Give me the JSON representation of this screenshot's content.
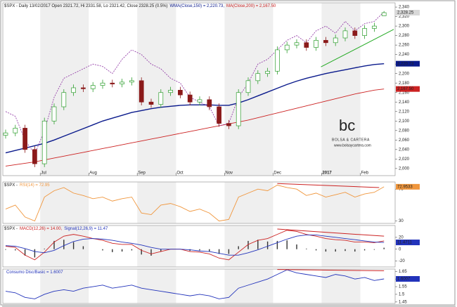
{
  "chart_data": [
    {
      "type": "candlestick",
      "title": "$SPX - Daily 13/02/2017 Open 2321.72, Hi 2331.58, Lo 2321.42, Close 2328.25 (0.5%)",
      "categories": [
        null,
        null,
        null,
        null,
        "Jul",
        null,
        null,
        null,
        null,
        "Aug",
        null,
        null,
        null,
        null,
        "Sep",
        null,
        null,
        null,
        "Oct",
        null,
        null,
        null,
        null,
        "Nov",
        null,
        null,
        null,
        null,
        "Dec",
        null,
        null,
        null,
        null,
        "2017",
        null,
        null,
        null,
        "Feb",
        null,
        null
      ],
      "open": [
        2070,
        2075,
        2085,
        2040,
        2010,
        2100,
        2130,
        2160,
        2170,
        2168,
        2175,
        2180,
        2178,
        2182,
        2185,
        2140,
        2135,
        2160,
        2165,
        2155,
        2140,
        2145,
        2130,
        2095,
        2090,
        2160,
        2185,
        2200,
        2205,
        2250,
        2260,
        2265,
        2255,
        2270,
        2265,
        2275,
        2290,
        2280,
        2295,
        2321.72
      ],
      "high": [
        2082,
        2092,
        2092,
        2047,
        2107,
        2137,
        2167,
        2177,
        2177,
        2182,
        2187,
        2187,
        2189,
        2192,
        2192,
        2147,
        2167,
        2172,
        2172,
        2162,
        2152,
        2152,
        2137,
        2102,
        2167,
        2192,
        2207,
        2212,
        2257,
        2267,
        2272,
        2272,
        2277,
        2277,
        2282,
        2297,
        2297,
        2302,
        2307,
        2331.58
      ],
      "low": [
        2063,
        2068,
        2033,
        2003,
        2003,
        2093,
        2123,
        2153,
        2161,
        2161,
        2168,
        2171,
        2171,
        2175,
        2133,
        2128,
        2128,
        2153,
        2148,
        2133,
        2133,
        2123,
        2088,
        2083,
        2083,
        2153,
        2178,
        2193,
        2198,
        2243,
        2253,
        2248,
        2248,
        2258,
        2258,
        2268,
        2273,
        2273,
        2288,
        2321.42
      ],
      "close": [
        2075,
        2085,
        2040,
        2010,
        2100,
        2130,
        2160,
        2170,
        2168,
        2175,
        2180,
        2178,
        2182,
        2185,
        2140,
        2135,
        2160,
        2165,
        2155,
        2140,
        2145,
        2130,
        2095,
        2090,
        2160,
        2185,
        2200,
        2205,
        2250,
        2260,
        2265,
        2255,
        2270,
        2265,
        2275,
        2290,
        2280,
        2295,
        2300,
        2328.25
      ],
      "last_label": "2,328.25",
      "up_color": "#2e9e2e",
      "down_color": "#8b1a1a",
      "series": [
        {
          "name": "WMA(Close,150) = 2,220.73,",
          "color": "#0a1a8c",
          "last_label": "2,220.73",
          "values": [
            2033,
            2038,
            2043,
            2048,
            2053,
            2060,
            2068,
            2076,
            2084,
            2092,
            2100,
            2106,
            2112,
            2118,
            2122,
            2126,
            2129,
            2131,
            2133,
            2134,
            2134,
            2134,
            2133,
            2133,
            2138,
            2145,
            2153,
            2161,
            2169,
            2177,
            2184,
            2190,
            2195,
            2200,
            2204,
            2208,
            2212,
            2216,
            2219,
            2220.73
          ]
        },
        {
          "name": "MA(Close,200) = 2,167.50",
          "color": "#cc2222",
          "last_label": "2,167.50",
          "values": [
            2005,
            2008,
            2011,
            2014,
            2018,
            2022,
            2026,
            2030,
            2034,
            2038,
            2042,
            2046,
            2050,
            2054,
            2058,
            2062,
            2066,
            2070,
            2074,
            2078,
            2082,
            2086,
            2090,
            2094,
            2098,
            2102,
            2107,
            2112,
            2117,
            2122,
            2127,
            2132,
            2137,
            2142,
            2147,
            2152,
            2157,
            2161,
            2165,
            2167.5
          ]
        }
      ],
      "overlay": {
        "color": "#8a2ca0",
        "values": [
          2120,
          2110,
          2060,
          2030,
          2080,
          2150,
          2190,
          2200,
          2210,
          2220,
          2215,
          2200,
          2230,
          2250,
          2240,
          2220,
          2210,
          2190,
          2180,
          2150,
          2140,
          2130,
          2090,
          2095,
          2150,
          2180,
          2220,
          2230,
          2250,
          2270,
          2280,
          2265,
          2290,
          2300,
          2285,
          2310,
          2290,
          2305,
          2310,
          2330
        ]
      },
      "trendline": {
        "color": "#22aa22",
        "x": [
          32.5,
          40
        ],
        "values": [
          2214,
          2293
        ]
      },
      "ylim": [
        1985,
        2349
      ],
      "yticks": [
        {
          "value": 2000,
          "label": "2,000"
        },
        {
          "value": 2020,
          "label": "2,020"
        },
        {
          "value": 2040,
          "label": "2,040"
        },
        {
          "value": 2060,
          "label": "2,060"
        },
        {
          "value": 2080,
          "label": "2,080"
        },
        {
          "value": 2100,
          "label": "2,100"
        },
        {
          "value": 2120,
          "label": "2,120"
        },
        {
          "value": 2140,
          "label": "2,140"
        },
        {
          "value": 2160,
          "label": "2,160"
        },
        {
          "value": 2180,
          "label": "2,180"
        },
        {
          "value": 2200,
          "label": "2,200"
        },
        {
          "value": 2220,
          "label": "2,220"
        },
        {
          "value": 2240,
          "label": "2,240"
        },
        {
          "value": 2260,
          "label": "2,260"
        },
        {
          "value": 2280,
          "label": "2,280"
        },
        {
          "value": 2300,
          "label": "2,300"
        },
        {
          "value": 2320,
          "label": "2,320"
        },
        {
          "value": 2340,
          "label": "2,340"
        }
      ],
      "watermark": {
        "logo": "bc",
        "name": "BOLSA & CARTERA",
        "url": "www.bolsaycartera.com"
      }
    },
    {
      "type": "line",
      "title": "$SPX -",
      "series": [
        {
          "name": "RSI(14) = 72.95",
          "color": "#f0963c",
          "last_label": "72.9533",
          "values": [
            45,
            50,
            35,
            30,
            60,
            68,
            72,
            65,
            62,
            58,
            60,
            55,
            58,
            60,
            40,
            38,
            50,
            52,
            48,
            42,
            45,
            40,
            30,
            32,
            60,
            65,
            70,
            68,
            75,
            72,
            70,
            62,
            65,
            60,
            63,
            66,
            60,
            64,
            66,
            72.95
          ]
        }
      ],
      "trendline": {
        "color": "#cc2222",
        "x": [
          28,
          38.5
        ],
        "values": [
          77,
          72
        ]
      },
      "ylim": [
        27,
        79
      ],
      "yticks": [
        30,
        70
      ]
    },
    {
      "type": "line",
      "title": "$SPX -",
      "series": [
        {
          "name": "MACD(12,26) = 14.00,",
          "color": "#cc2222",
          "values": [
            5,
            3,
            -10,
            -18,
            -5,
            12,
            22,
            25,
            22,
            18,
            15,
            10,
            8,
            8,
            -2,
            -8,
            -4,
            0,
            0,
            -4,
            -5,
            -8,
            -15,
            -18,
            -5,
            8,
            15,
            18,
            25,
            32,
            30,
            25,
            22,
            18,
            16,
            15,
            12,
            12,
            11,
            14
          ]
        },
        {
          "name": "Signal(12,26,9) = 11.47",
          "color": "#2233bb",
          "last_label": "11.4711",
          "values": [
            6,
            5,
            1,
            -4,
            -6,
            -2,
            6,
            13,
            17,
            18,
            17,
            15,
            12,
            10,
            7,
            3,
            0,
            0,
            0,
            -1,
            -3,
            -4,
            -7,
            -10,
            -10,
            -6,
            -1,
            5,
            11,
            17,
            22,
            24,
            24,
            22,
            20,
            18,
            16,
            14,
            12,
            11.47
          ]
        }
      ],
      "histogram": {
        "color": "#333333",
        "values": [
          -1,
          -2,
          -11,
          -14,
          1,
          14,
          16,
          12,
          5,
          0,
          -2,
          -5,
          -4,
          -2,
          -9,
          -11,
          -4,
          0,
          0,
          -3,
          -2,
          -4,
          -8,
          -8,
          5,
          14,
          16,
          13,
          14,
          15,
          8,
          1,
          -2,
          -4,
          -4,
          -3,
          -4,
          -2,
          -1,
          2.5
        ]
      },
      "trendline": {
        "color": "#cc2222",
        "x": [
          28,
          39
        ],
        "values": [
          34,
          22
        ]
      },
      "ylim": [
        -30,
        40
      ],
      "yticks": [
        -20,
        0,
        20
      ]
    },
    {
      "type": "line",
      "series": [
        {
          "name": "Consumo Disc/Basic = 1.6007",
          "color": "#2233bb",
          "last_label": "1.6007",
          "values": [
            1.52,
            1.51,
            1.48,
            1.47,
            1.5,
            1.52,
            1.53,
            1.52,
            1.54,
            1.55,
            1.56,
            1.54,
            1.55,
            1.56,
            1.54,
            1.53,
            1.52,
            1.51,
            1.5,
            1.49,
            1.5,
            1.49,
            1.47,
            1.48,
            1.54,
            1.56,
            1.58,
            1.6,
            1.63,
            1.66,
            1.64,
            1.63,
            1.62,
            1.61,
            1.63,
            1.62,
            1.6,
            1.61,
            1.59,
            1.6007
          ]
        }
      ],
      "trendline": {
        "color": "#cc2222",
        "x": [
          28,
          39
        ],
        "values": [
          1.662,
          1.654
        ]
      },
      "ylim": [
        1.44,
        1.665
      ],
      "yticks": [
        1.45,
        1.5,
        1.55,
        1.6,
        1.65
      ]
    }
  ]
}
